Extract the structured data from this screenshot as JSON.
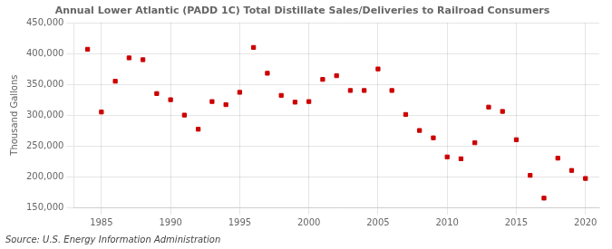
{
  "chart_data": {
    "type": "scatter",
    "title": "Annual Lower Atlantic (PADD 1C) Total Distillate Sales/Deliveries to Railroad Consumers",
    "ylabel": "Thousand Gallons",
    "annotation": "Source: U.S. Energy Information Administration",
    "x": [
      1984,
      1985,
      1986,
      1987,
      1988,
      1989,
      1990,
      1991,
      1992,
      1993,
      1994,
      1995,
      1996,
      1997,
      1998,
      1999,
      2000,
      2001,
      2002,
      2003,
      2004,
      2005,
      2006,
      2007,
      2008,
      2009,
      2010,
      2011,
      2012,
      2013,
      2014,
      2015,
      2016,
      2017,
      2018,
      2019,
      2020
    ],
    "values": [
      407000,
      305000,
      355000,
      393000,
      390000,
      335000,
      325000,
      300000,
      277000,
      322000,
      317000,
      337000,
      410000,
      368000,
      332000,
      321000,
      322000,
      358000,
      364000,
      340000,
      340000,
      375000,
      340000,
      301000,
      275000,
      263000,
      232000,
      229000,
      255000,
      313000,
      306000,
      260000,
      202000,
      165000,
      230000,
      210000,
      197000
    ],
    "color": "#cc0000",
    "marker": "square",
    "xlim": [
      1983,
      2021
    ],
    "xticks": [
      1985,
      1990,
      1995,
      2000,
      2005,
      2010,
      2015,
      2020
    ],
    "ylim": [
      150000,
      450000
    ],
    "yticks": [
      {
        "value": 150000,
        "label": "150,000"
      },
      {
        "value": 200000,
        "label": "200,000"
      },
      {
        "value": 250000,
        "label": "250,000"
      },
      {
        "value": 300000,
        "label": "300,000"
      },
      {
        "value": 350000,
        "label": "350,000"
      },
      {
        "value": 400000,
        "label": "400,000"
      },
      {
        "value": 450000,
        "label": "450,000"
      }
    ],
    "grid": true
  }
}
